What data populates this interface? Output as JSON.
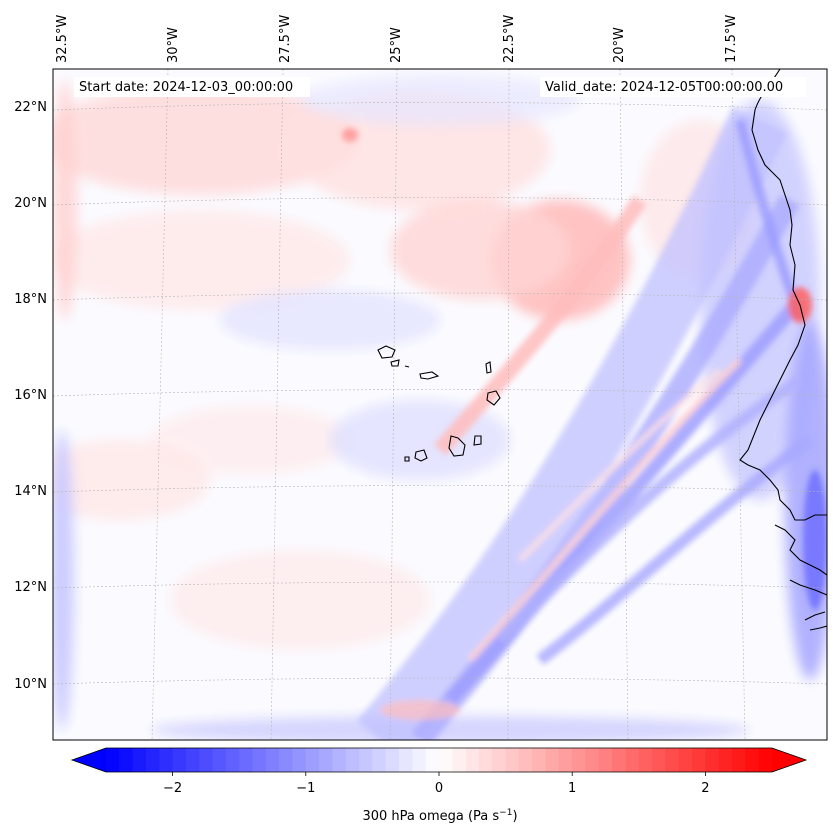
{
  "map": {
    "start_label": "Start date: 2024-12-03_00:00:00",
    "valid_label": "Valid_date: 2024-12-05T00:00:00.00",
    "lon_labels": [
      "32.5°W",
      "30°W",
      "27.5°W",
      "25°W",
      "22.5°W",
      "20°W",
      "17.5°W"
    ],
    "lat_labels": [
      "22°N",
      "20°N",
      "18°N",
      "16°N",
      "14°N",
      "12°N",
      "10°N"
    ],
    "field": "300 hPa omega"
  },
  "colorbar": {
    "label_text": "300 hPa omega (Pa s",
    "label_exp": "−1",
    "label_close": ")",
    "ticks": [
      {
        "value": -2,
        "text": "−2"
      },
      {
        "value": -1,
        "text": "−1"
      },
      {
        "value": 0,
        "text": "0"
      },
      {
        "value": 1,
        "text": "1"
      },
      {
        "value": 2,
        "text": "2"
      }
    ],
    "vmin": -2.5,
    "vmax": 2.5,
    "n_levels": 50,
    "color_low": "#0000ff",
    "color_mid": "#ffffff",
    "color_high": "#ff0000",
    "extend": "both"
  }
}
